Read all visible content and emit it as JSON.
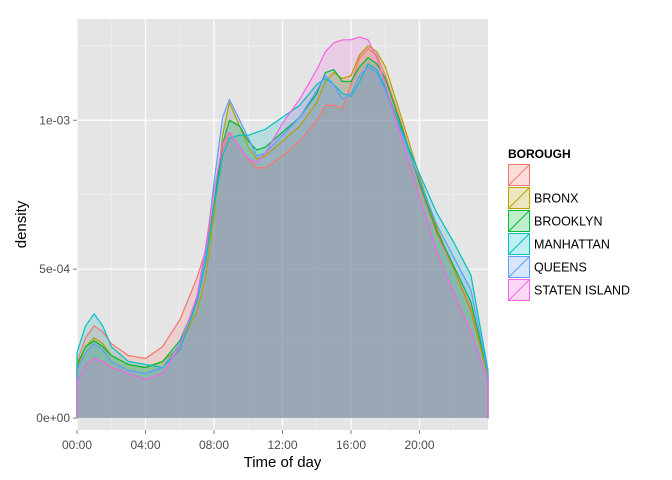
{
  "chart_data": {
    "type": "area",
    "xlabel": "Time of day",
    "ylabel": "density",
    "x_unit": "hours",
    "xlim": [
      0,
      24
    ],
    "ylim": [
      -4e-05,
      0.00134
    ],
    "x_ticks": [
      {
        "value": 0,
        "label": "00:00"
      },
      {
        "value": 4,
        "label": "04:00"
      },
      {
        "value": 8,
        "label": "08:00"
      },
      {
        "value": 12,
        "label": "12:00"
      },
      {
        "value": 16,
        "label": "16:00"
      },
      {
        "value": 20,
        "label": "20:00"
      }
    ],
    "y_ticks": [
      {
        "value": 0,
        "label": "0e+00"
      },
      {
        "value": 0.0005,
        "label": "5e-04"
      },
      {
        "value": 0.001,
        "label": "1e-03"
      }
    ],
    "grid": true,
    "legend": {
      "title": "BOROUGH",
      "position": "right"
    },
    "x": [
      0,
      0.5,
      1,
      1.5,
      2,
      3,
      4,
      5,
      6,
      7,
      7.5,
      8,
      8.5,
      8.9,
      9.5,
      10,
      10.5,
      11,
      12,
      13,
      14,
      14.5,
      15,
      15.5,
      16,
      16.5,
      17,
      17.5,
      18,
      19,
      20,
      21,
      22,
      23,
      24
    ],
    "series": [
      {
        "name": "",
        "color": "#F8766D",
        "values": [
          0.00019,
          0.00027,
          0.00031,
          0.00029,
          0.00025,
          0.00021,
          0.0002,
          0.00024,
          0.00033,
          0.00047,
          0.00056,
          0.00072,
          0.0009,
          0.00096,
          0.00091,
          0.00087,
          0.00084,
          0.00084,
          0.00088,
          0.00093,
          0.001,
          0.00105,
          0.00105,
          0.00104,
          0.00112,
          0.00121,
          0.00124,
          0.00122,
          0.00115,
          0.00098,
          0.00078,
          0.00062,
          0.0005,
          0.00037,
          0.00014
        ]
      },
      {
        "name": "BRONX",
        "color": "#B79F00",
        "values": [
          0.00017,
          0.00024,
          0.00027,
          0.00025,
          0.00021,
          0.00018,
          0.00017,
          0.00019,
          0.00024,
          0.00036,
          0.00047,
          0.00068,
          0.00095,
          0.00106,
          0.00098,
          0.00091,
          0.00087,
          0.00088,
          0.00093,
          0.00098,
          0.00106,
          0.00113,
          0.00116,
          0.00114,
          0.00115,
          0.00122,
          0.00125,
          0.00123,
          0.00118,
          0.001,
          0.00081,
          0.00064,
          0.0005,
          0.00036,
          0.00014
        ]
      },
      {
        "name": "BROOKLYN",
        "color": "#00BA38",
        "values": [
          0.00018,
          0.00024,
          0.00026,
          0.00024,
          0.00021,
          0.00018,
          0.00017,
          0.00019,
          0.00026,
          0.00039,
          0.00052,
          0.00072,
          0.00092,
          0.001,
          0.00098,
          0.00093,
          0.0009,
          0.00091,
          0.00096,
          0.00101,
          0.00109,
          0.00116,
          0.00117,
          0.00113,
          0.00113,
          0.00118,
          0.00121,
          0.00119,
          0.00114,
          0.00097,
          0.00079,
          0.00063,
          0.00051,
          0.00039,
          0.00015
        ]
      },
      {
        "name": "MANHATTAN",
        "color": "#00BFC4",
        "values": [
          0.00022,
          0.00031,
          0.00035,
          0.00031,
          0.00024,
          0.00019,
          0.00018,
          0.00017,
          0.00023,
          0.00039,
          0.00052,
          0.00071,
          0.00088,
          0.00094,
          0.00095,
          0.00095,
          0.00096,
          0.00097,
          0.00101,
          0.00105,
          0.00112,
          0.00114,
          0.00112,
          0.00109,
          0.00108,
          0.00113,
          0.00119,
          0.00117,
          0.00111,
          0.00096,
          0.00082,
          0.00069,
          0.00059,
          0.00048,
          0.00016
        ]
      },
      {
        "name": "QUEENS",
        "color": "#619CFF",
        "values": [
          0.00016,
          0.00022,
          0.00025,
          0.00023,
          0.00019,
          0.00016,
          0.00015,
          0.00017,
          0.00025,
          0.0004,
          0.00055,
          0.00079,
          0.00101,
          0.00107,
          0.001,
          0.00094,
          0.00088,
          0.00089,
          0.00095,
          0.00101,
          0.0011,
          0.00115,
          0.00112,
          0.00107,
          0.00109,
          0.00115,
          0.00118,
          0.00116,
          0.0011,
          0.00095,
          0.0008,
          0.00065,
          0.00054,
          0.00043,
          0.00015
        ]
      },
      {
        "name": "STATEN ISLAND",
        "color": "#F564E3",
        "values": [
          0.00012,
          0.00018,
          0.0002,
          0.00019,
          0.00017,
          0.00015,
          0.00013,
          0.00015,
          0.00024,
          0.00041,
          0.00057,
          0.00076,
          0.00092,
          0.00096,
          0.00091,
          0.00087,
          0.00086,
          0.00089,
          0.00099,
          0.00107,
          0.00117,
          0.00123,
          0.00126,
          0.00127,
          0.00127,
          0.00128,
          0.00127,
          0.00121,
          0.00112,
          0.00093,
          0.00074,
          0.00056,
          0.00042,
          0.00029,
          0.00012
        ]
      }
    ]
  }
}
